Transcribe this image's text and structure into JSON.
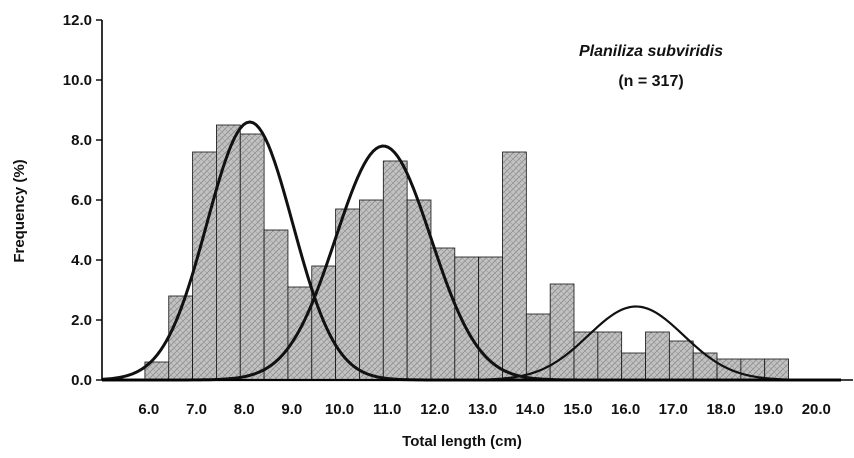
{
  "chart_data": {
    "type": "bar",
    "title": "",
    "xlabel": "Total length (cm)",
    "ylabel": "Frequency (%)",
    "ylim": [
      0,
      12
    ],
    "xlim": [
      5.1,
      20.6
    ],
    "y_ticks": [
      "0.0",
      "2.0",
      "4.0",
      "6.0",
      "8.0",
      "10.0",
      "12.0"
    ],
    "x_ticks": [
      "6.0",
      "7.0",
      "8.0",
      "9.0",
      "10.0",
      "11.0",
      "12.0",
      "13.0",
      "14.0",
      "15.0",
      "16.0",
      "17.0",
      "18.0",
      "19.0",
      "20.0"
    ],
    "grid": false,
    "legend": "none",
    "annotation": {
      "species": "Planiliza subviridis",
      "n_label": "(n = 317)"
    },
    "bin_width": 0.5,
    "bins": [
      {
        "x": 6.0,
        "value": 0.6
      },
      {
        "x": 6.5,
        "value": 2.8
      },
      {
        "x": 7.0,
        "value": 7.6
      },
      {
        "x": 7.5,
        "value": 8.5
      },
      {
        "x": 8.0,
        "value": 8.2
      },
      {
        "x": 8.5,
        "value": 5.0
      },
      {
        "x": 9.0,
        "value": 3.1
      },
      {
        "x": 9.5,
        "value": 3.8
      },
      {
        "x": 10.0,
        "value": 5.7
      },
      {
        "x": 10.5,
        "value": 6.0
      },
      {
        "x": 11.0,
        "value": 7.3
      },
      {
        "x": 11.5,
        "value": 6.0
      },
      {
        "x": 12.0,
        "value": 4.4
      },
      {
        "x": 12.5,
        "value": 4.1
      },
      {
        "x": 13.0,
        "value": 4.1
      },
      {
        "x": 13.5,
        "value": 7.6
      },
      {
        "x": 14.0,
        "value": 2.2
      },
      {
        "x": 14.5,
        "value": 3.2
      },
      {
        "x": 15.0,
        "value": 1.6
      },
      {
        "x": 15.5,
        "value": 1.6
      },
      {
        "x": 16.0,
        "value": 0.9
      },
      {
        "x": 16.5,
        "value": 1.6
      },
      {
        "x": 17.0,
        "value": 1.3
      },
      {
        "x": 17.5,
        "value": 0.9
      },
      {
        "x": 18.0,
        "value": 0.7
      },
      {
        "x": 18.5,
        "value": 0.7
      },
      {
        "x": 19.0,
        "value": 0.7
      }
    ],
    "curves": [
      {
        "type": "normal",
        "mean": 8.2,
        "sd": 0.9,
        "peak": 8.6
      },
      {
        "type": "normal",
        "mean": 11.0,
        "sd": 1.0,
        "peak": 7.8
      },
      {
        "type": "normal",
        "mean": 16.3,
        "sd": 1.0,
        "peak": 2.45
      }
    ],
    "colors": {
      "bar_fill": "#bdbdbd",
      "bar_stroke": "#111111",
      "curve_stroke": "#111111"
    }
  }
}
